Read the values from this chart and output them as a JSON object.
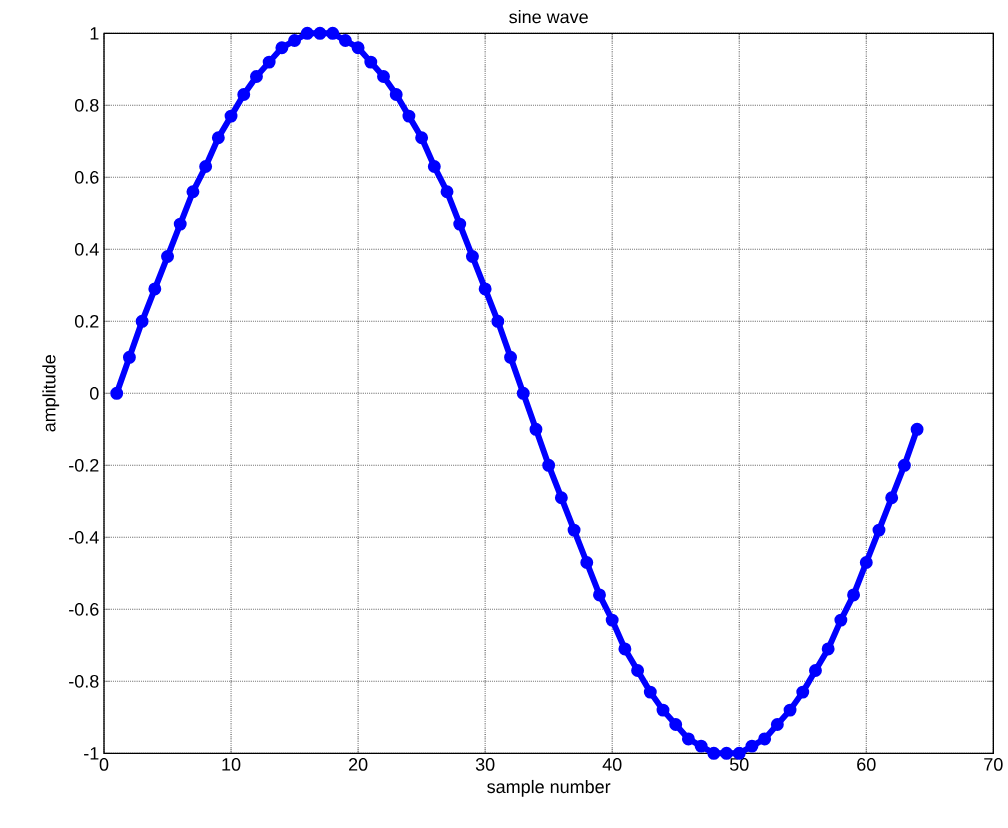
{
  "chart_data": {
    "type": "line",
    "title": "sine wave",
    "xlabel": "sample number",
    "ylabel": "amplitude",
    "x": [
      1,
      2,
      3,
      4,
      5,
      6,
      7,
      8,
      9,
      10,
      11,
      12,
      13,
      14,
      15,
      16,
      17,
      18,
      19,
      20,
      21,
      22,
      23,
      24,
      25,
      26,
      27,
      28,
      29,
      30,
      31,
      32,
      33,
      34,
      35,
      36,
      37,
      38,
      39,
      40,
      41,
      42,
      43,
      44,
      45,
      46,
      47,
      48,
      49,
      50,
      51,
      52,
      53,
      54,
      55,
      56,
      57,
      58,
      59,
      60,
      61,
      62,
      63,
      64
    ],
    "series": [
      {
        "color": "#0000ff",
        "values": [
          0,
          0.1,
          0.2,
          0.29,
          0.38,
          0.47,
          0.56,
          0.63,
          0.71,
          0.77,
          0.83,
          0.88,
          0.92,
          0.96,
          0.98,
          1.0,
          1.0,
          1.0,
          0.98,
          0.96,
          0.92,
          0.88,
          0.83,
          0.77,
          0.71,
          0.63,
          0.56,
          0.47,
          0.38,
          0.29,
          0.2,
          0.1,
          0,
          -0.1,
          -0.2,
          -0.29,
          -0.38,
          -0.47,
          -0.56,
          -0.63,
          -0.71,
          -0.77,
          -0.83,
          -0.88,
          -0.92,
          -0.96,
          -0.98,
          -1.0,
          -1.0,
          -1.0,
          -0.98,
          -0.96,
          -0.92,
          -0.88,
          -0.83,
          -0.77,
          -0.71,
          -0.63,
          -0.56,
          -0.47,
          -0.38,
          -0.29,
          -0.2,
          -0.1
        ]
      }
    ],
    "xlim": [
      0,
      70
    ],
    "ylim": [
      -1,
      1
    ],
    "xticks": [
      0,
      10,
      20,
      30,
      40,
      50,
      60,
      70
    ],
    "yticks": [
      -1,
      -0.8,
      -0.6,
      -0.4,
      -0.2,
      0,
      0.2,
      0.4,
      0.6,
      0.8,
      1
    ],
    "grid": true,
    "marker": "circle",
    "line_style": "solid"
  }
}
